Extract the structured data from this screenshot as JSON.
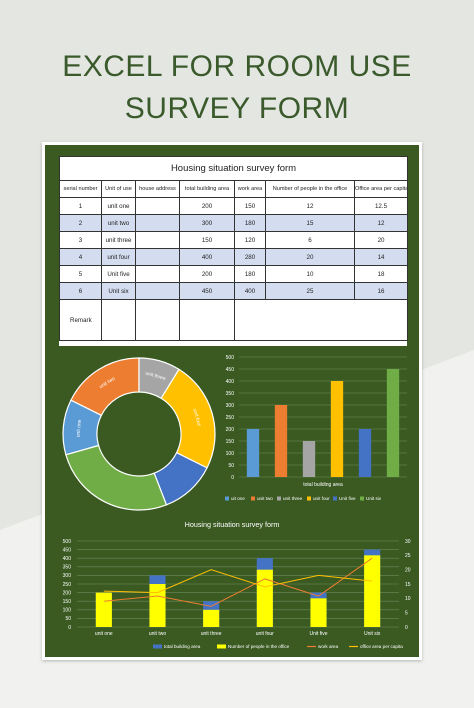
{
  "page": {
    "title_line1": "EXCEL FOR ROOM USE",
    "title_line2": "SURVEY FORM"
  },
  "table": {
    "title": "Housing situation survey form",
    "headers": [
      "serial number",
      "Unit of use",
      "house address",
      "total building area",
      "work area",
      "Number of people in the office",
      "Office area per capita"
    ],
    "rows": [
      [
        "1",
        "unit one",
        "",
        "200",
        "150",
        "12",
        "12.5"
      ],
      [
        "2",
        "unit two",
        "",
        "300",
        "180",
        "15",
        "12"
      ],
      [
        "3",
        "unit three",
        "",
        "150",
        "120",
        "6",
        "20"
      ],
      [
        "4",
        "unit four",
        "",
        "400",
        "280",
        "20",
        "14"
      ],
      [
        "5",
        "Unit five",
        "",
        "200",
        "180",
        "10",
        "18"
      ],
      [
        "6",
        "Unit six",
        "",
        "450",
        "400",
        "25",
        "16"
      ]
    ],
    "remark_label": "Remark"
  },
  "colors": {
    "panel": "#3a5a22",
    "unit_one": "#5b9bd5",
    "unit_two": "#ed7d31",
    "unit_three": "#a5a5a5",
    "unit_four": "#ffc000",
    "unit_five": "#4472c4",
    "unit_six": "#70ad47",
    "bar_total": "#4472c4",
    "bar_people": "#ffff00",
    "line_work": "#ed7d31",
    "line_per_capita": "#ffc000"
  },
  "chart_data": [
    {
      "type": "pie",
      "variant": "donut",
      "categories": [
        "unit one",
        "unit two",
        "unit three",
        "unit four",
        "unit five",
        "Unit six"
      ],
      "values": [
        200,
        300,
        150,
        400,
        200,
        450
      ],
      "visible_labels": [
        "unit one",
        "unit two",
        "unit three",
        "unit four",
        "",
        ""
      ]
    },
    {
      "type": "bar",
      "categories": [
        "uitation unit one",
        "unit two",
        "unit three",
        "unit four",
        "Unit five",
        "Unit six"
      ],
      "values": [
        200,
        300,
        150,
        400,
        200,
        450
      ],
      "xlabel": "total building area",
      "ylim": [
        0,
        500
      ],
      "yticks": [
        0,
        50,
        100,
        150,
        200,
        250,
        300,
        350,
        400,
        450,
        500
      ],
      "legend": [
        "uit one",
        "unit two",
        "unit three",
        "unit four",
        "Unit five",
        "Unit six"
      ],
      "grid": true,
      "legend_position": "bottom"
    },
    {
      "type": "bar",
      "title": "Housing situation survey form",
      "categories": [
        "unit one",
        "unit two",
        "unit three",
        "unit four",
        "Unit five",
        "Unit six"
      ],
      "series": [
        {
          "name": "total building area",
          "kind": "bar-stack-top",
          "values": [
            200,
            300,
            150,
            400,
            200,
            450
          ]
        },
        {
          "name": "Number of people in the office",
          "kind": "bar",
          "values": [
            12,
            15,
            6,
            20,
            10,
            25
          ]
        },
        {
          "name": "work area",
          "kind": "line",
          "values": [
            150,
            180,
            120,
            280,
            180,
            400
          ]
        },
        {
          "name": "office area per capita",
          "kind": "line",
          "values": [
            12.5,
            12,
            20,
            14,
            18,
            16
          ]
        }
      ],
      "ylim_left": [
        0,
        500
      ],
      "yticks_left": [
        0,
        50,
        100,
        150,
        200,
        250,
        300,
        350,
        400,
        450,
        500
      ],
      "ylim_right": [
        0,
        30
      ],
      "yticks_right": [
        0,
        5,
        10,
        15,
        20,
        25,
        30
      ],
      "legend": [
        "total building area",
        "Number of people in the office",
        "work area",
        "office area per capita"
      ],
      "legend_position": "bottom",
      "grid": true
    }
  ]
}
